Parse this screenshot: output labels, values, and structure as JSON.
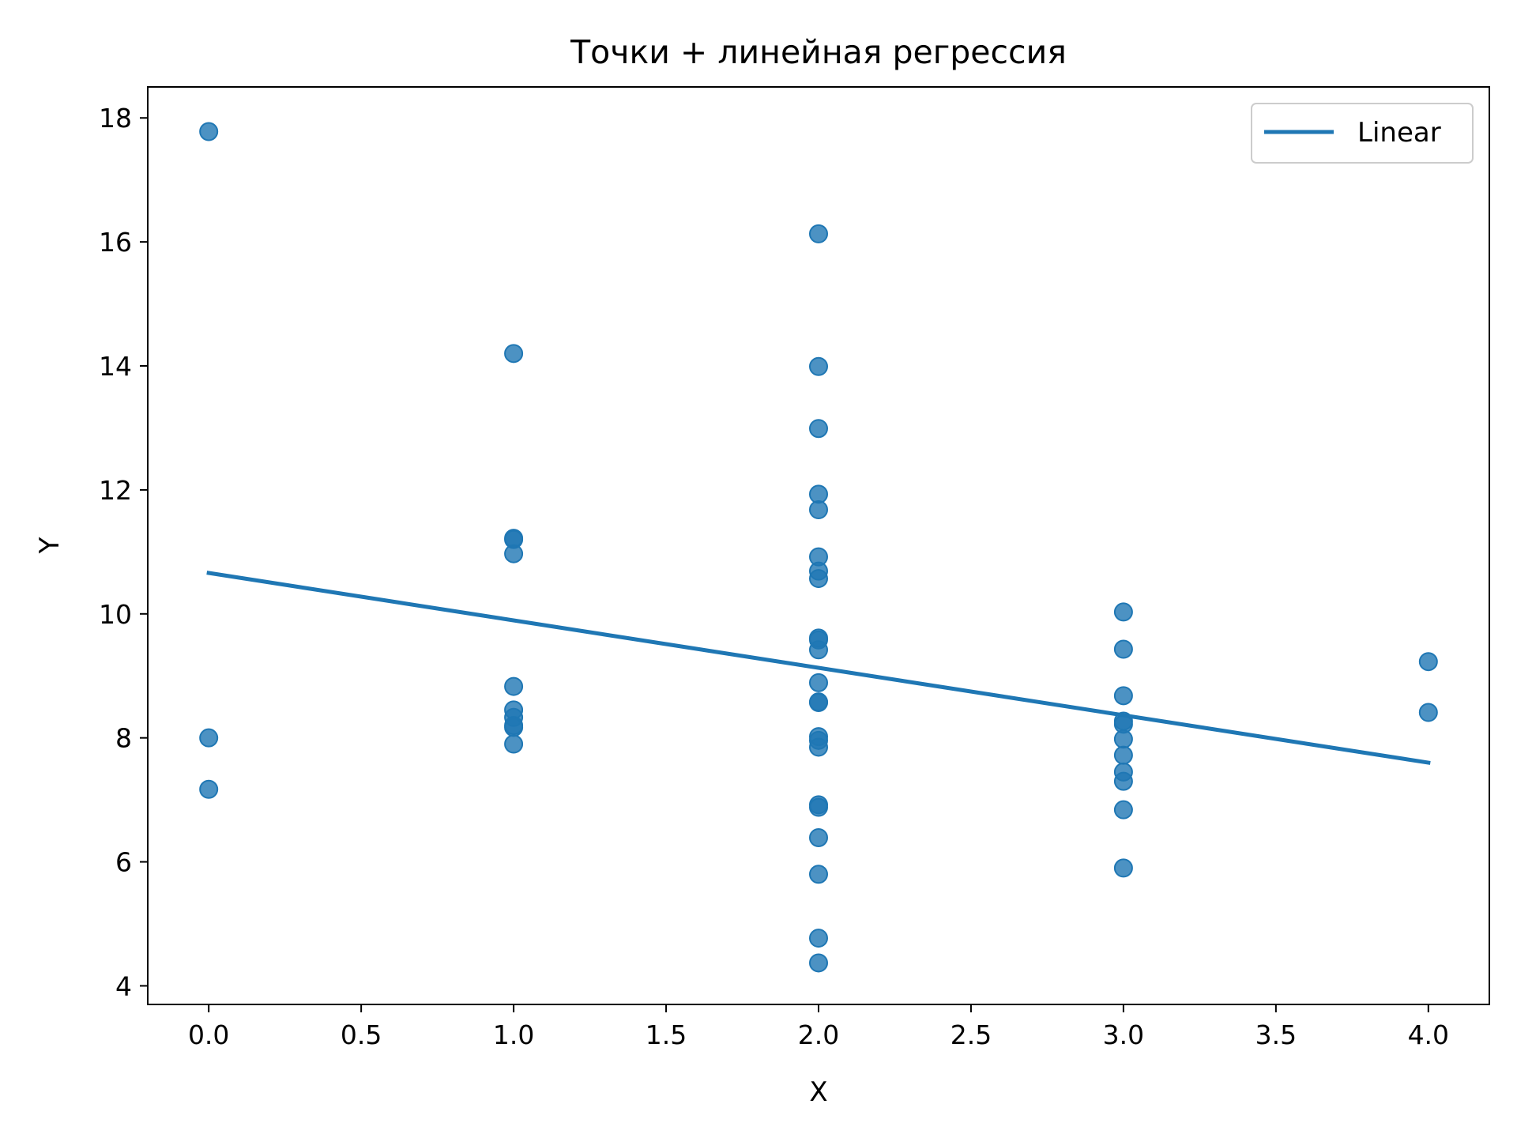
{
  "chart_data": {
    "type": "scatter",
    "title": "Точки + линейная регрессия",
    "xlabel": "X",
    "ylabel": "Y",
    "xlim": [
      -0.2,
      4.2
    ],
    "ylim": [
      3.7,
      18.5
    ],
    "xticks": [
      0.0,
      0.5,
      1.0,
      1.5,
      2.0,
      2.5,
      3.0,
      3.5,
      4.0
    ],
    "xtick_labels": [
      "0.0",
      "0.5",
      "1.0",
      "1.5",
      "2.0",
      "2.5",
      "3.0",
      "3.5",
      "4.0"
    ],
    "yticks": [
      4,
      6,
      8,
      10,
      12,
      14,
      16,
      18
    ],
    "ytick_labels": [
      "4",
      "6",
      "8",
      "10",
      "12",
      "14",
      "16",
      "18"
    ],
    "grid": false,
    "legend_position": "top-right",
    "color": "#1f77b4",
    "points": [
      {
        "x": 0,
        "y": 17.78
      },
      {
        "x": 0,
        "y": 8.0
      },
      {
        "x": 0,
        "y": 7.17
      },
      {
        "x": 1,
        "y": 14.2
      },
      {
        "x": 1,
        "y": 11.22
      },
      {
        "x": 1,
        "y": 11.2
      },
      {
        "x": 1,
        "y": 10.97
      },
      {
        "x": 1,
        "y": 8.83
      },
      {
        "x": 1,
        "y": 8.45
      },
      {
        "x": 1,
        "y": 8.33
      },
      {
        "x": 1,
        "y": 8.2
      },
      {
        "x": 1,
        "y": 8.17
      },
      {
        "x": 1,
        "y": 7.9
      },
      {
        "x": 2,
        "y": 16.13
      },
      {
        "x": 2,
        "y": 13.99
      },
      {
        "x": 2,
        "y": 12.99
      },
      {
        "x": 2,
        "y": 11.93
      },
      {
        "x": 2,
        "y": 11.68
      },
      {
        "x": 2,
        "y": 10.92
      },
      {
        "x": 2,
        "y": 10.69
      },
      {
        "x": 2,
        "y": 10.57
      },
      {
        "x": 2,
        "y": 9.61
      },
      {
        "x": 2,
        "y": 9.58
      },
      {
        "x": 2,
        "y": 9.42
      },
      {
        "x": 2,
        "y": 8.89
      },
      {
        "x": 2,
        "y": 8.58
      },
      {
        "x": 2,
        "y": 8.57
      },
      {
        "x": 2,
        "y": 8.02
      },
      {
        "x": 2,
        "y": 7.96
      },
      {
        "x": 2,
        "y": 7.85
      },
      {
        "x": 2,
        "y": 6.92
      },
      {
        "x": 2,
        "y": 6.88
      },
      {
        "x": 2,
        "y": 6.39
      },
      {
        "x": 2,
        "y": 5.8
      },
      {
        "x": 2,
        "y": 4.77
      },
      {
        "x": 2,
        "y": 4.37
      },
      {
        "x": 3,
        "y": 10.03
      },
      {
        "x": 3,
        "y": 9.43
      },
      {
        "x": 3,
        "y": 8.68
      },
      {
        "x": 3,
        "y": 8.27
      },
      {
        "x": 3,
        "y": 8.22
      },
      {
        "x": 3,
        "y": 7.98
      },
      {
        "x": 3,
        "y": 7.72
      },
      {
        "x": 3,
        "y": 7.45
      },
      {
        "x": 3,
        "y": 7.3
      },
      {
        "x": 3,
        "y": 6.84
      },
      {
        "x": 3,
        "y": 5.9
      },
      {
        "x": 4,
        "y": 9.23
      },
      {
        "x": 4,
        "y": 8.41
      }
    ],
    "series": [
      {
        "name": "Linear",
        "type": "line",
        "x": [
          0,
          4
        ],
        "y": [
          10.66,
          7.6
        ]
      }
    ]
  }
}
